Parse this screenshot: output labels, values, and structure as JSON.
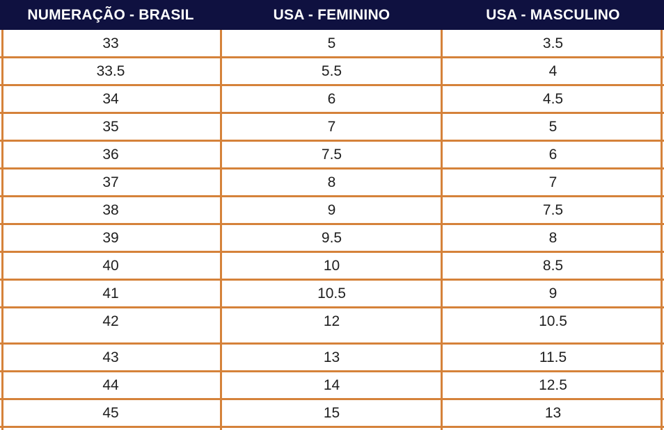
{
  "table": {
    "border_color": "#d5823a",
    "header_bg": "#0f1140",
    "headers": [
      "NUMERAÇÃO - BRASIL",
      "USA - FEMININO",
      "USA - MASCULINO"
    ],
    "rows": [
      [
        "33",
        "5",
        "3.5"
      ],
      [
        "33.5",
        "5.5",
        "4"
      ],
      [
        "34",
        "6",
        "4.5"
      ],
      [
        "35",
        "7",
        "5"
      ],
      [
        "36",
        "7.5",
        "6"
      ],
      [
        "37",
        "8",
        "7"
      ],
      [
        "38",
        "9",
        "7.5"
      ],
      [
        "39",
        "9.5",
        "8"
      ],
      [
        "40",
        "10",
        "8.5"
      ],
      [
        "41",
        "10.5",
        "9"
      ],
      [
        "42",
        "12",
        "10.5"
      ],
      [
        "43",
        "13",
        "11.5"
      ],
      [
        "44",
        "14",
        "12.5"
      ],
      [
        "45",
        "15",
        "13"
      ]
    ]
  }
}
